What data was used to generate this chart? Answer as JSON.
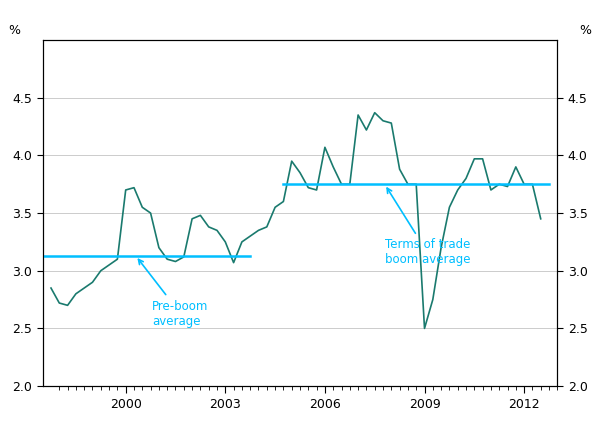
{
  "ylabel_left": "%",
  "ylabel_right": "%",
  "ylim": [
    2.0,
    5.0
  ],
  "yticks": [
    2.0,
    2.5,
    3.0,
    3.5,
    4.0,
    4.5
  ],
  "pre_boom_avg": 3.13,
  "pre_boom_x_start": 1997.5,
  "pre_boom_x_end": 2003.75,
  "terms_boom_avg": 3.75,
  "terms_boom_x_start": 2004.75,
  "terms_boom_x_end": 2012.75,
  "line_color": "#1a7a6e",
  "avg_line_color": "#00bfff",
  "annotation_color": "#00bfff",
  "x_ticks": [
    2000,
    2003,
    2006,
    2009,
    2012
  ],
  "xlim": [
    1997.5,
    2013.0
  ],
  "data": [
    [
      1997.75,
      2.85
    ],
    [
      1998.0,
      2.72
    ],
    [
      1998.25,
      2.7
    ],
    [
      1998.5,
      2.8
    ],
    [
      1998.75,
      2.85
    ],
    [
      1999.0,
      2.9
    ],
    [
      1999.25,
      3.0
    ],
    [
      1999.5,
      3.05
    ],
    [
      1999.75,
      3.1
    ],
    [
      2000.0,
      3.7
    ],
    [
      2000.25,
      3.72
    ],
    [
      2000.5,
      3.55
    ],
    [
      2000.75,
      3.5
    ],
    [
      2001.0,
      3.2
    ],
    [
      2001.25,
      3.1
    ],
    [
      2001.5,
      3.08
    ],
    [
      2001.75,
      3.12
    ],
    [
      2002.0,
      3.45
    ],
    [
      2002.25,
      3.48
    ],
    [
      2002.5,
      3.38
    ],
    [
      2002.75,
      3.35
    ],
    [
      2003.0,
      3.25
    ],
    [
      2003.25,
      3.07
    ],
    [
      2003.5,
      3.25
    ],
    [
      2003.75,
      3.3
    ],
    [
      2004.0,
      3.35
    ],
    [
      2004.25,
      3.38
    ],
    [
      2004.5,
      3.55
    ],
    [
      2004.75,
      3.6
    ],
    [
      2005.0,
      3.95
    ],
    [
      2005.25,
      3.85
    ],
    [
      2005.5,
      3.72
    ],
    [
      2005.75,
      3.7
    ],
    [
      2006.0,
      4.07
    ],
    [
      2006.25,
      3.9
    ],
    [
      2006.5,
      3.75
    ],
    [
      2006.75,
      3.75
    ],
    [
      2007.0,
      4.35
    ],
    [
      2007.25,
      4.22
    ],
    [
      2007.5,
      4.37
    ],
    [
      2007.75,
      4.3
    ],
    [
      2008.0,
      4.28
    ],
    [
      2008.25,
      3.88
    ],
    [
      2008.5,
      3.75
    ],
    [
      2008.75,
      3.75
    ],
    [
      2009.0,
      2.5
    ],
    [
      2009.25,
      2.75
    ],
    [
      2009.5,
      3.2
    ],
    [
      2009.75,
      3.55
    ],
    [
      2010.0,
      3.7
    ],
    [
      2010.25,
      3.8
    ],
    [
      2010.5,
      3.97
    ],
    [
      2010.75,
      3.97
    ],
    [
      2011.0,
      3.7
    ],
    [
      2011.25,
      3.75
    ],
    [
      2011.5,
      3.73
    ],
    [
      2011.75,
      3.9
    ],
    [
      2012.0,
      3.75
    ],
    [
      2012.25,
      3.75
    ],
    [
      2012.5,
      3.45
    ]
  ]
}
